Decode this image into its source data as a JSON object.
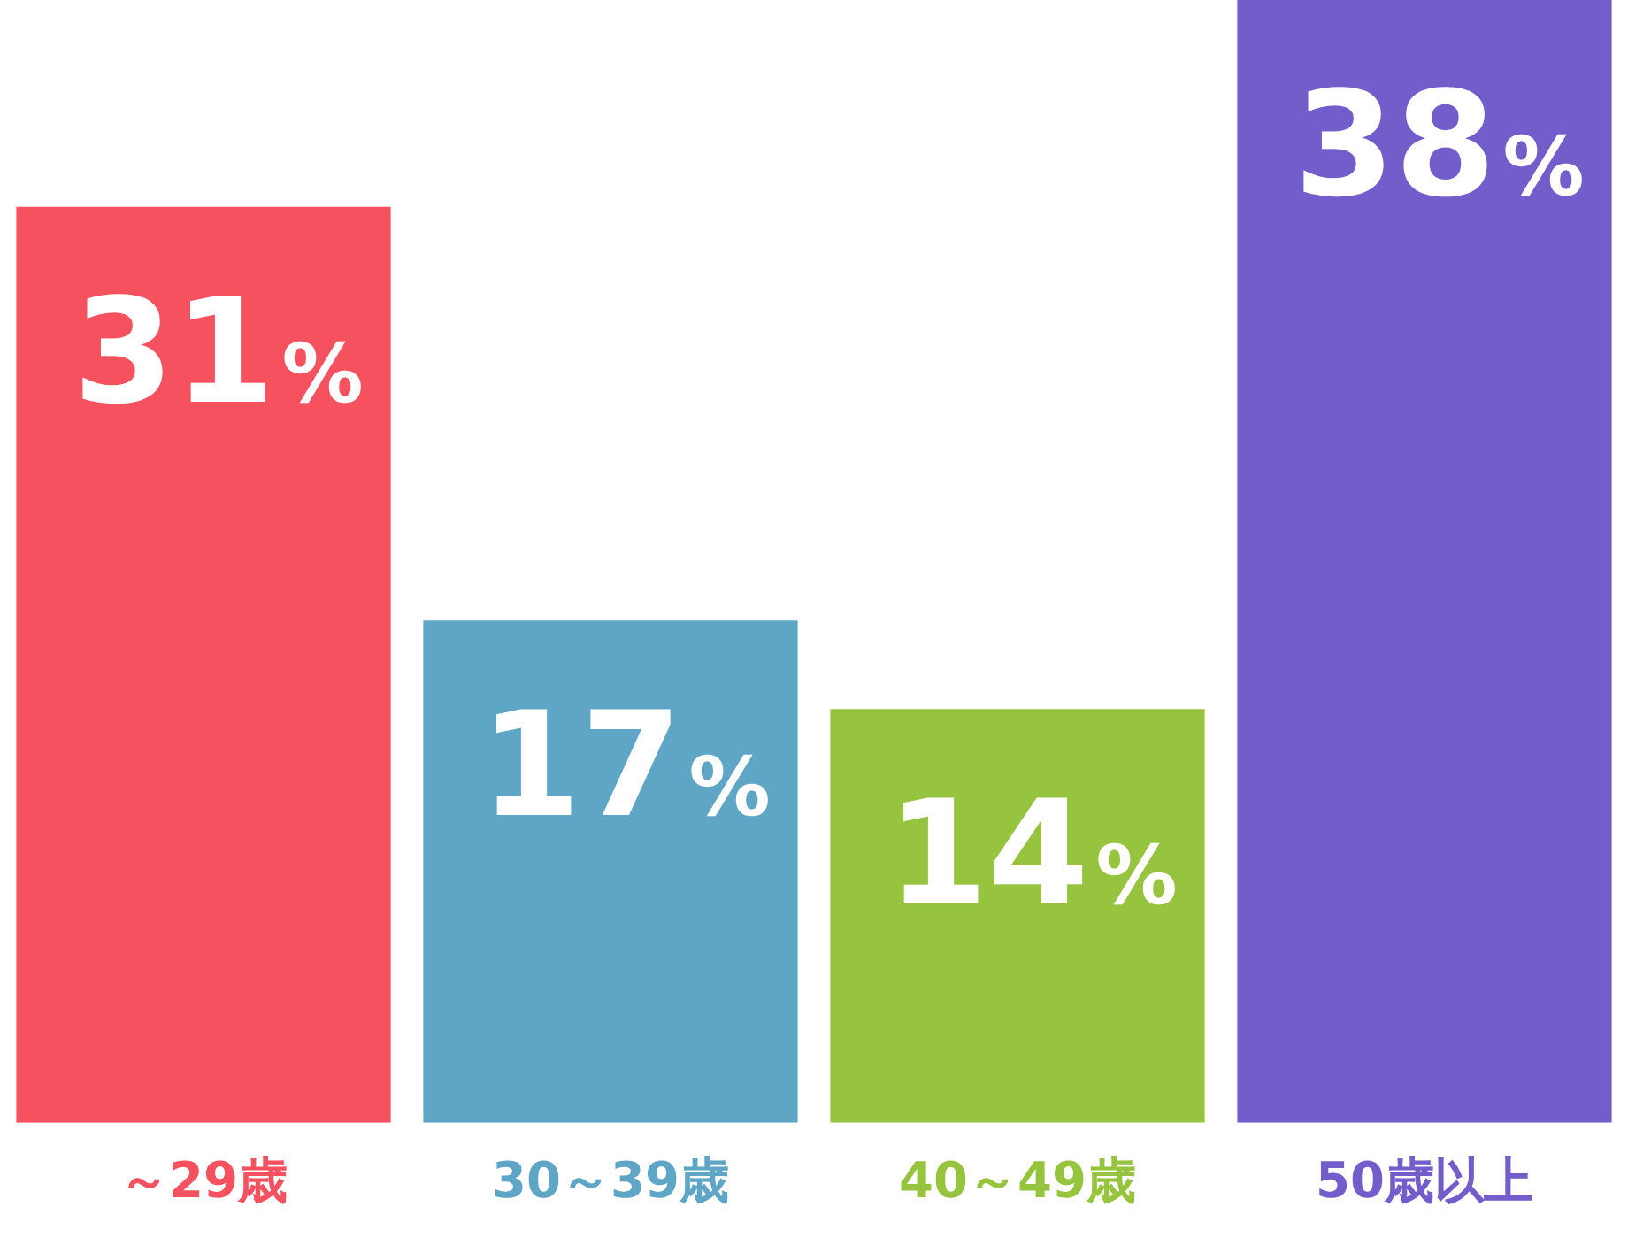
{
  "chart_data": {
    "type": "bar",
    "categories": [
      "～29歳",
      "30～39歳",
      "40～49歳",
      "50歳以上"
    ],
    "values": [
      31,
      17,
      14,
      38
    ],
    "colors": [
      "#f5515f",
      "#5ea5c6",
      "#97c43f",
      "#735dcb"
    ],
    "value_labels": [
      "31%",
      "17%",
      "14%",
      "38%"
    ],
    "grid": false,
    "legend": false
  }
}
